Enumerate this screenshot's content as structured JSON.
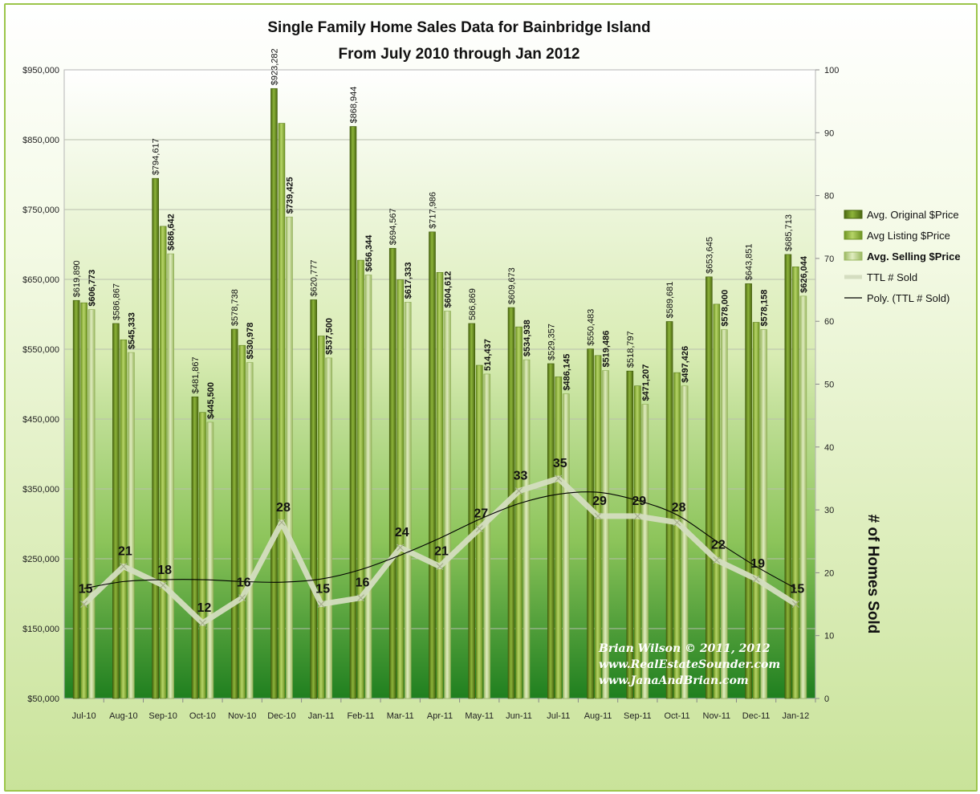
{
  "chart_data": {
    "type": "bar",
    "title": [
      "Single Family Home Sales Data for Bainbridge Island",
      "From July 2010 through Jan 2012"
    ],
    "categories": [
      "Jul-10",
      "Aug-10",
      "Sep-10",
      "Oct-10",
      "Nov-10",
      "Dec-10",
      "Jan-11",
      "Feb-11",
      "Mar-11",
      "Apr-11",
      "May-11",
      "Jun-11",
      "Jul-11",
      "Aug-11",
      "Sep-11",
      "Oct-11",
      "Nov-11",
      "Dec-11",
      "Jan-12"
    ],
    "series": [
      {
        "name": "Avg. Original $Price",
        "axis": "left",
        "color": "#6e8f1f",
        "values": [
          619890,
          586867,
          794617,
          481867,
          578738,
          923282,
          620777,
          868944,
          694567,
          717986,
          586869,
          609673,
          529357,
          550483,
          518797,
          589681,
          653645,
          643851,
          685713
        ],
        "labels": [
          "$619,890",
          "$586,867",
          "$794,617",
          "$481,867",
          "$578,738",
          "$923,282",
          "$620,777",
          "$868,944",
          "$694,567",
          "$717,986",
          "586,869",
          "$609,673",
          "$529,357",
          "$550,483",
          "$518,797",
          "$589,681",
          "$653,645",
          "$643,851",
          "$685,713"
        ]
      },
      {
        "name": "Avg Listing $Price",
        "axis": "left",
        "color": "#94b63c",
        "values": [
          616500,
          563500,
          726000,
          459500,
          555500,
          873500,
          569000,
          677500,
          649500,
          660000,
          527000,
          582000,
          510500,
          541000,
          497500,
          516500,
          614500,
          588500,
          668000
        ],
        "labels": []
      },
      {
        "name": "Avg. Selling $Price",
        "axis": "left",
        "color": "#bfd585",
        "values": [
          606773,
          545333,
          686642,
          445500,
          530978,
          739425,
          537500,
          656344,
          617333,
          604612,
          514437,
          534938,
          486145,
          519486,
          471207,
          497426,
          578000,
          578158,
          626044
        ],
        "labels": [
          "$606,773",
          "$545,333",
          "$686,642",
          "$445,500",
          "$530,978",
          "$739,425",
          "$537,500",
          "$656,344",
          "$617,333",
          "$604,612",
          "514,437",
          "$534,938",
          "$486,145",
          "$519,486",
          "$471,207",
          "$497,426",
          "$578,000",
          "$578,158",
          "$626,044"
        ]
      },
      {
        "name": "TTL # Sold",
        "axis": "right",
        "type": "line",
        "color": "#d4ddc0",
        "values": [
          15,
          21,
          18,
          12,
          16,
          28,
          15,
          16,
          24,
          21,
          27,
          33,
          35,
          29,
          29,
          28,
          22,
          19,
          15
        ]
      },
      {
        "name": "Poly. (TTL # Sold)",
        "axis": "right",
        "type": "line",
        "color": "#000000",
        "values": [
          17.5,
          18.6,
          18.9,
          18.9,
          18.6,
          18.5,
          19.0,
          20.5,
          22.8,
          25.5,
          28.5,
          31.0,
          32.5,
          32.8,
          31.5,
          29.2,
          25.0,
          21.0,
          17.5
        ]
      }
    ],
    "y_left": {
      "ylim": [
        50000,
        950000
      ],
      "ticks": [
        "$50,000",
        "$150,000",
        "$250,000",
        "$350,000",
        "$450,000",
        "$550,000",
        "$650,000",
        "$750,000",
        "$850,000",
        "$950,000"
      ]
    },
    "y_right": {
      "ylim": [
        0,
        100
      ],
      "ticks": [
        "0",
        "10",
        "20",
        "30",
        "40",
        "50",
        "60",
        "70",
        "80",
        "90",
        "100"
      ],
      "label": "# of Homes Sold"
    },
    "grid": true,
    "legend": "right"
  },
  "credit": [
    "Brian Wilson  © 2011, 2012",
    "www.RealEstateSounder.com",
    "www.JanaAndBrian.com"
  ],
  "colors": {
    "original": "#6e8f1f",
    "listing": "#94b63c",
    "selling": "#bfd585",
    "sold_line": "#d4ddc0",
    "trend": "#000000"
  }
}
